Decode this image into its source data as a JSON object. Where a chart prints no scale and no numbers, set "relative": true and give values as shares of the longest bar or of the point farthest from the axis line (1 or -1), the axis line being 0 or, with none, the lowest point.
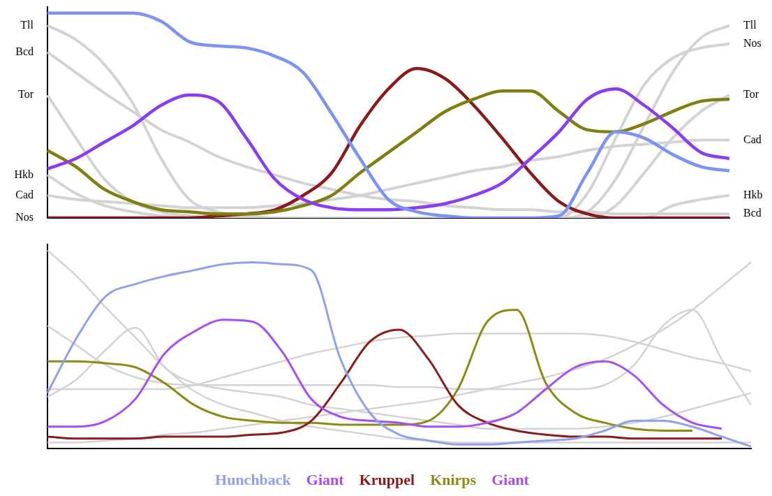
{
  "chart_data": [
    {
      "type": "line",
      "relative": true,
      "legend": false,
      "marker": "none",
      "categories": [
        null,
        null,
        null,
        null,
        null,
        null,
        null,
        null,
        null,
        null,
        null,
        null,
        null,
        null,
        null,
        null,
        null,
        null,
        null,
        null,
        null,
        null,
        null,
        null,
        null
      ],
      "series": [
        {
          "name": "Tll",
          "color": "#d3d3d3",
          "values": [
            0.94,
            0.87,
            0.75,
            0.56,
            0.29,
            0.09,
            0.03,
            0.01,
            0,
            0,
            0,
            0,
            0,
            0,
            0,
            0,
            0,
            0,
            0,
            0.03,
            0.19,
            0.45,
            0.71,
            0.88,
            0.94
          ]
        },
        {
          "name": "Bcd",
          "color": "#d3d3d3",
          "values": [
            0.81,
            0.71,
            0.61,
            0.52,
            0.43,
            0.37,
            0.3,
            0.25,
            0.21,
            0.17,
            0.14,
            0.11,
            0.09,
            0.08,
            0.06,
            0.05,
            0.04,
            0.04,
            0.03,
            0.03,
            0.02,
            0.02,
            0.02,
            0.02,
            0.02
          ]
        },
        {
          "name": "Tor",
          "color": "#d3d3d3",
          "values": [
            0.6,
            0.39,
            0.19,
            0.08,
            0.03,
            0.01,
            0,
            0,
            0,
            0,
            0,
            0,
            0,
            0,
            0,
            0,
            0,
            0,
            0,
            0,
            0.06,
            0.22,
            0.39,
            0.52,
            0.6
          ]
        },
        {
          "name": "Hkb",
          "color": "#d3d3d3",
          "values": [
            0.21,
            0.12,
            0.06,
            0.03,
            0.01,
            0,
            0,
            0,
            0,
            0,
            0,
            0,
            0,
            0,
            0,
            0,
            0,
            0,
            0,
            0,
            0,
            0,
            0.06,
            0.09,
            0.11
          ]
        },
        {
          "name": "Cad",
          "color": "#d3d3d3",
          "values": [
            0.11,
            0.09,
            0.08,
            0.07,
            0.06,
            0.05,
            0.05,
            0.05,
            0.06,
            0.07,
            0.09,
            0.11,
            0.14,
            0.17,
            0.2,
            0.23,
            0.25,
            0.28,
            0.3,
            0.33,
            0.35,
            0.36,
            0.37,
            0.38,
            0.38
          ]
        },
        {
          "name": "Nos",
          "color": "#d3d3d3",
          "values": [
            0,
            0,
            0,
            0,
            0,
            0,
            0,
            0,
            0,
            0,
            0,
            0,
            0,
            0,
            0,
            0,
            0,
            0,
            0,
            0.12,
            0.39,
            0.65,
            0.78,
            0.83,
            0.85
          ]
        },
        {
          "color": "#7b93f5",
          "values": [
            1,
            1,
            1,
            1,
            0.96,
            0.86,
            0.84,
            0.83,
            0.79,
            0.71,
            0.51,
            0.29,
            0.09,
            0.03,
            0.01,
            0,
            0,
            0,
            0.01,
            0.22,
            0.42,
            0.39,
            0.31,
            0.25,
            0.23
          ]
        },
        {
          "color": "#8a3cf5",
          "values": [
            0.24,
            0.29,
            0.37,
            0.45,
            0.55,
            0.6,
            0.57,
            0.39,
            0.19,
            0.09,
            0.05,
            0.04,
            0.04,
            0.05,
            0.07,
            0.11,
            0.17,
            0.29,
            0.42,
            0.58,
            0.63,
            0.55,
            0.44,
            0.32,
            0.29
          ]
        },
        {
          "color": "#7f7f0f",
          "values": [
            0.33,
            0.25,
            0.14,
            0.08,
            0.04,
            0.03,
            0.02,
            0.02,
            0.03,
            0.06,
            0.11,
            0.22,
            0.32,
            0.42,
            0.52,
            0.58,
            0.62,
            0.62,
            0.52,
            0.43,
            0.42,
            0.46,
            0.52,
            0.57,
            0.58
          ]
        },
        {
          "color": "#8b1a1a",
          "values": [
            0,
            0,
            0,
            0,
            0,
            0,
            0.01,
            0.02,
            0.04,
            0.11,
            0.22,
            0.45,
            0.63,
            0.73,
            0.68,
            0.55,
            0.39,
            0.22,
            0.08,
            0.02,
            0,
            0,
            0,
            0,
            0
          ]
        }
      ]
    },
    {
      "type": "line",
      "relative": true,
      "legend": "bottom",
      "marker": "none",
      "annotations": [
        "Giant"
      ],
      "categories": [
        null,
        null,
        null,
        null,
        null,
        null,
        null,
        null,
        null,
        null,
        null,
        null,
        null,
        null,
        null,
        null,
        null,
        null,
        null,
        null,
        null,
        null,
        null,
        null,
        null
      ],
      "series": [
        {
          "name": "Hunchback",
          "color": "#8fa0f0",
          "values": [
            0.28,
            0.56,
            0.77,
            0.83,
            0.87,
            0.9,
            0.93,
            0.94,
            0.93,
            0.9,
            0.45,
            0.18,
            0.07,
            0.04,
            0.02,
            0.02,
            0.03,
            0.04,
            0.05,
            0.09,
            0.14,
            0.14,
            0.11,
            0.06,
            0.01
          ]
        },
        {
          "name": "Giant",
          "color": "#a64cf8",
          "values": [
            0.11,
            0.11,
            0.14,
            0.25,
            0.48,
            0.59,
            0.65,
            0.64,
            0.49,
            0.25,
            0.16,
            0.14,
            0.13,
            0.11,
            0.11,
            0.13,
            0.18,
            0.3,
            0.41,
            0.44,
            0.37,
            0.22,
            0.13,
            0.1,
            null
          ]
        },
        {
          "name": "Kruppel",
          "color": "#8b1a1a",
          "values": [
            0.06,
            0.05,
            0.05,
            0.05,
            0.06,
            0.06,
            0.06,
            0.07,
            0.08,
            0.14,
            0.33,
            0.54,
            0.6,
            0.45,
            0.22,
            0.13,
            0.09,
            0.07,
            0.06,
            0.06,
            0.05,
            0.05,
            0.05,
            0.05,
            null
          ]
        },
        {
          "name": "Knirps",
          "color": "#8b8b14",
          "values": [
            0.44,
            0.44,
            0.43,
            0.41,
            0.33,
            0.22,
            0.16,
            0.14,
            0.13,
            0.13,
            0.12,
            0.12,
            0.12,
            0.14,
            0.3,
            0.64,
            0.7,
            0.33,
            0.18,
            0.13,
            0.1,
            0.09,
            0.09,
            null,
            null
          ]
        },
        {
          "color": "#d3d3d3",
          "values": [
            1.0,
            0.87,
            0.71,
            0.56,
            0.41,
            0.29,
            0.22,
            0.18,
            0.14,
            0.11,
            0.09,
            0.07,
            0.05,
            0.04,
            0.03,
            0.03,
            0.03,
            0.03,
            0.03,
            0.03,
            0.03,
            0.03,
            0.03,
            0.03,
            0.03
          ]
        },
        {
          "color": "#d3d3d3",
          "values": [
            0.03,
            0.03,
            0.04,
            0.05,
            0.07,
            0.08,
            0.1,
            0.12,
            0.14,
            0.16,
            0.18,
            0.2,
            0.22,
            0.24,
            0.27,
            0.3,
            0.33,
            0.36,
            0.4,
            0.45,
            0.52,
            0.6,
            0.7,
            0.82,
            0.94
          ]
        },
        {
          "color": "#d3d3d3",
          "values": [
            0.62,
            0.52,
            0.42,
            0.36,
            0.33,
            0.32,
            0.32,
            0.32,
            0.32,
            0.32,
            0.32,
            0.32,
            0.31,
            0.31,
            0.3,
            0.3,
            0.3,
            0.3,
            0.3,
            0.32,
            0.42,
            0.62,
            0.7,
            0.45,
            0.22
          ]
        },
        {
          "color": "#d3d3d3",
          "values": [
            0.3,
            0.3,
            0.3,
            0.3,
            0.3,
            0.32,
            0.36,
            0.4,
            0.44,
            0.48,
            0.51,
            0.54,
            0.56,
            0.57,
            0.58,
            0.58,
            0.58,
            0.58,
            0.58,
            0.57,
            0.54,
            0.5,
            0.46,
            0.43,
            0.39
          ]
        },
        {
          "color": "#d3d3d3",
          "values": [
            0.26,
            0.35,
            0.5,
            0.61,
            0.41,
            0.33,
            0.3,
            0.28,
            0.26,
            0.22,
            0.2,
            0.18,
            0.16,
            0.14,
            0.12,
            0.1,
            0.1,
            0.1,
            0.1,
            0.11,
            0.13,
            0.16,
            0.2,
            0.24,
            0.28
          ]
        }
      ]
    }
  ]
}
